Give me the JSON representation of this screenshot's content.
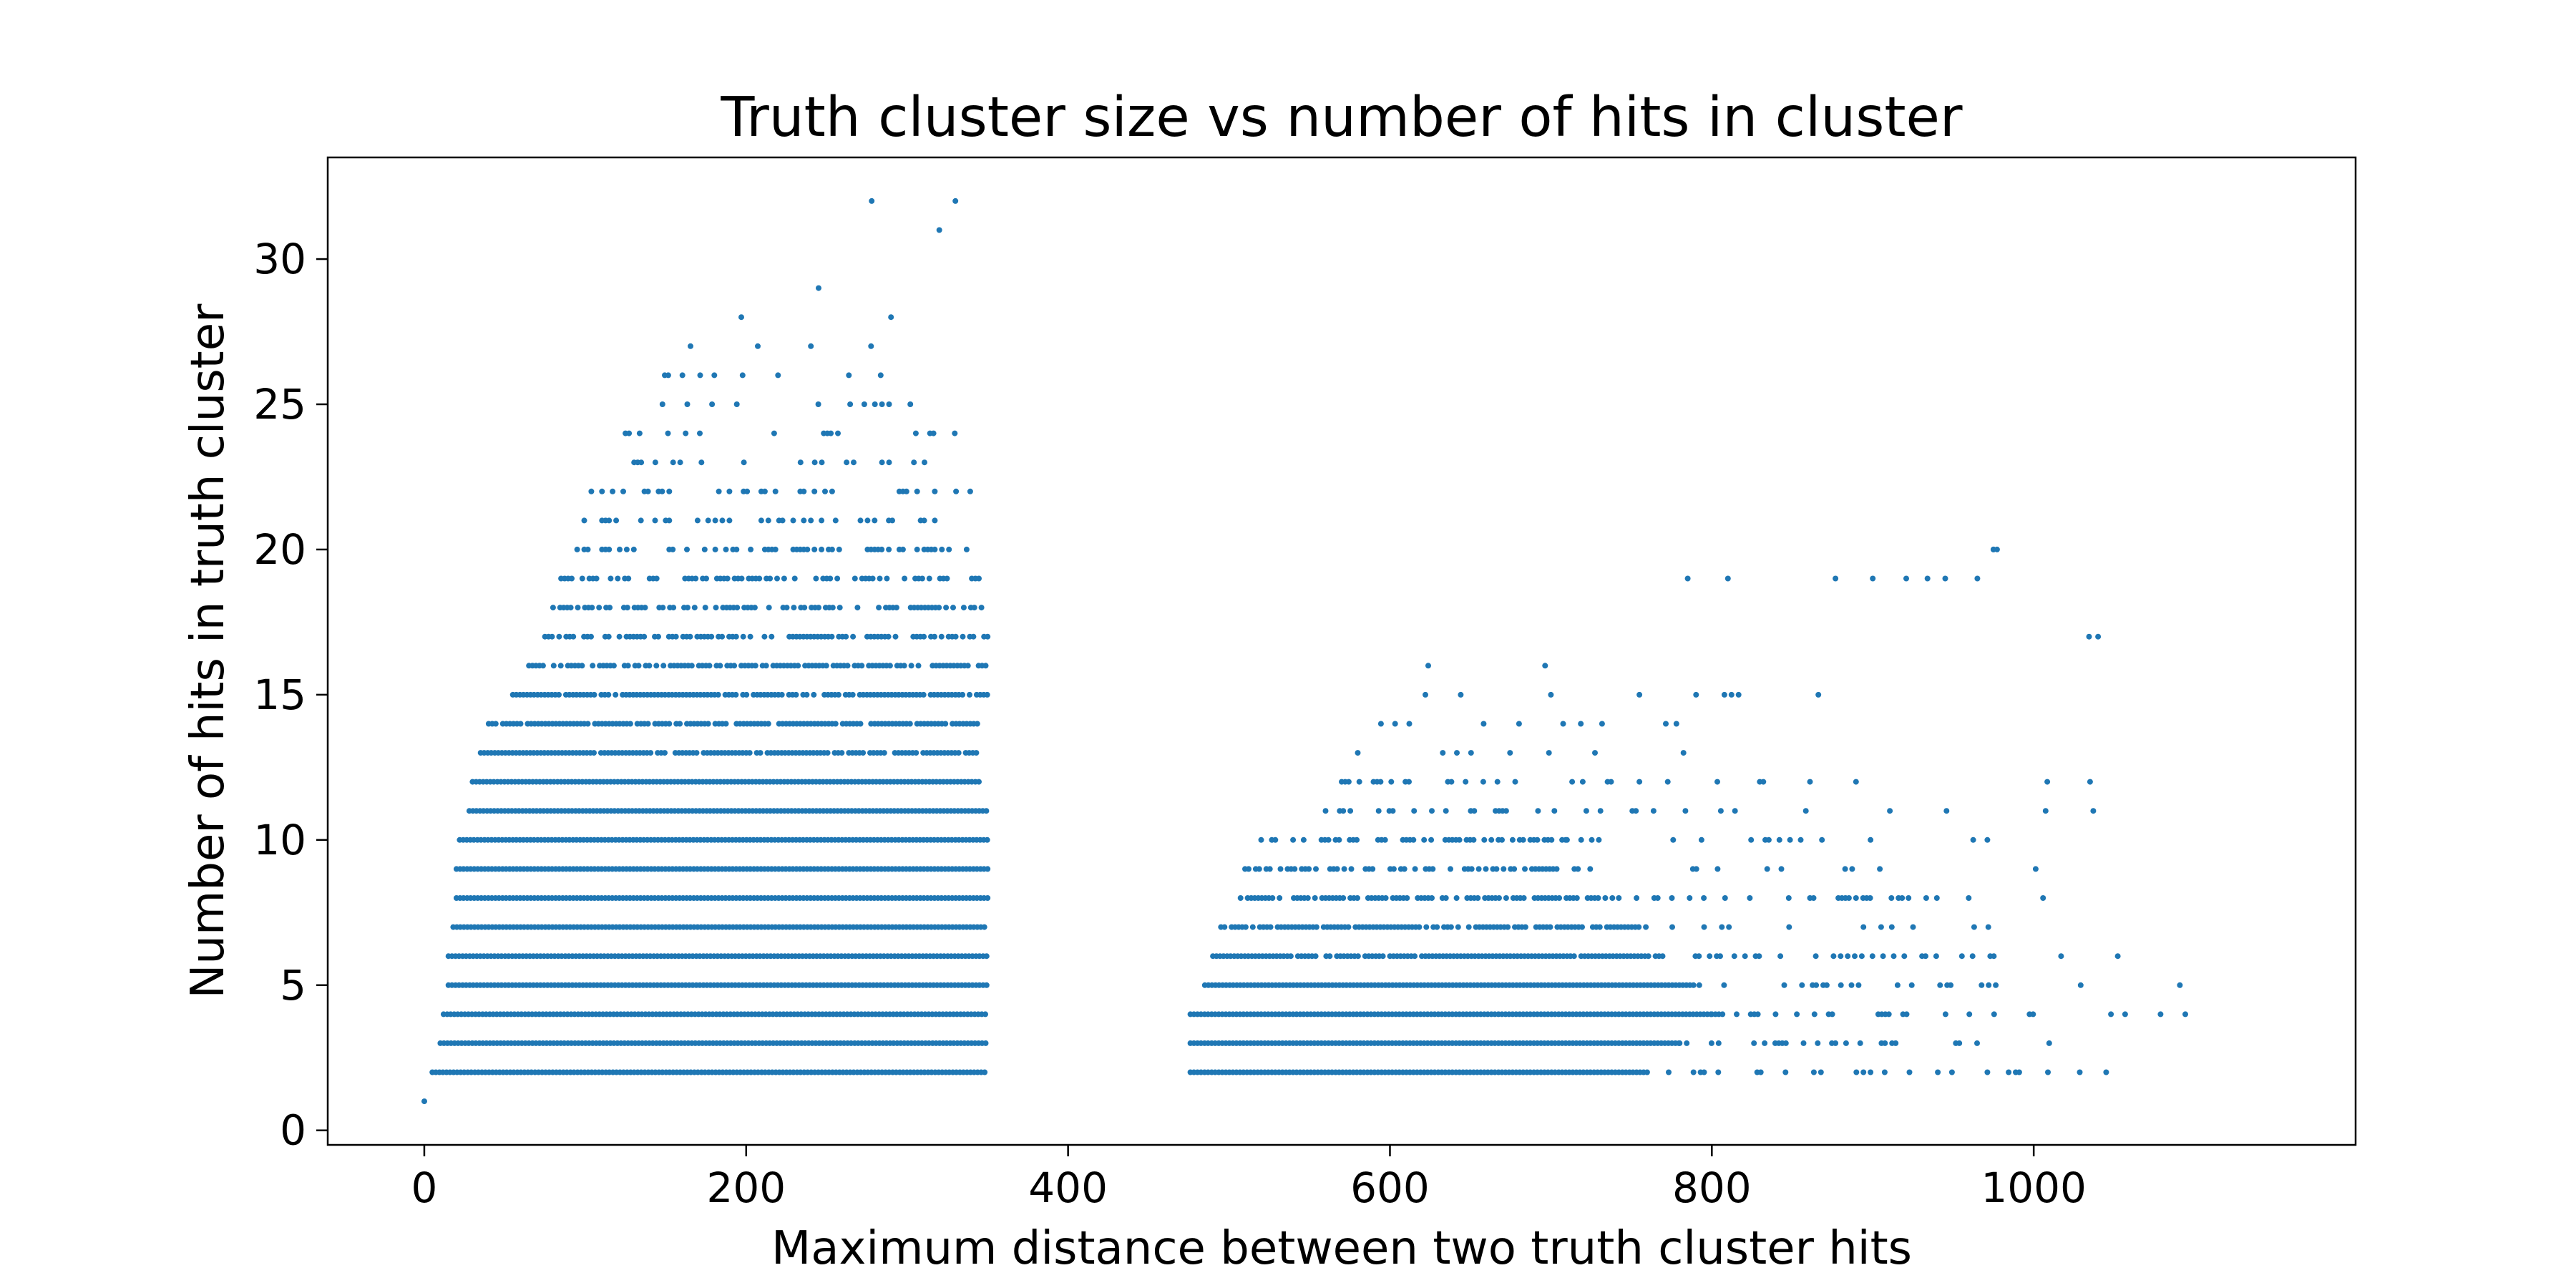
{
  "chart_data": {
    "type": "scatter",
    "title": "Truth cluster size vs number of hits in cluster",
    "xlabel": "Maximum distance between two truth cluster hits",
    "ylabel": "Number of hits in truth cluster",
    "xlim": [
      -60,
      1200
    ],
    "ylim": [
      -0.5,
      33.5
    ],
    "xticks": [
      0,
      200,
      400,
      600,
      800,
      1000
    ],
    "yticks": [
      0,
      5,
      10,
      15,
      20,
      25,
      30
    ],
    "grid": false,
    "marker_color": "#1f77b4",
    "series": [
      {
        "name": "",
        "bands": [
          {
            "y": 2,
            "segments": [
              [
                5,
                350,
                1.0
              ],
              [
                476,
                760,
                1.0
              ],
              [
                760,
                1000,
                0.25
              ],
              [
                1000,
                1050,
                0.08
              ]
            ]
          },
          {
            "y": 3,
            "segments": [
              [
                10,
                350,
                1.0
              ],
              [
                476,
                780,
                1.0
              ],
              [
                780,
                970,
                0.3
              ],
              [
                970,
                1060,
                0.08
              ]
            ]
          },
          {
            "y": 4,
            "segments": [
              [
                12,
                350,
                1.0
              ],
              [
                476,
                800,
                1.0
              ],
              [
                800,
                960,
                0.3
              ],
              [
                960,
                1140,
                0.06
              ]
            ]
          },
          {
            "y": 5,
            "segments": [
              [
                15,
                350,
                1.0
              ],
              [
                485,
                790,
                1.0
              ],
              [
                790,
                950,
                0.25
              ],
              [
                950,
                1110,
                0.05
              ]
            ]
          },
          {
            "y": 6,
            "segments": [
              [
                15,
                350,
                1.0
              ],
              [
                490,
                770,
                0.95
              ],
              [
                770,
                940,
                0.25
              ],
              [
                940,
                1080,
                0.05
              ]
            ]
          },
          {
            "y": 7,
            "segments": [
              [
                18,
                350,
                1.0
              ],
              [
                495,
                760,
                0.85
              ],
              [
                760,
                930,
                0.2
              ],
              [
                930,
                1000,
                0.05
              ]
            ]
          },
          {
            "y": 8,
            "segments": [
              [
                20,
                350,
                1.0
              ],
              [
                505,
                740,
                0.75
              ],
              [
                740,
                920,
                0.2
              ],
              [
                920,
                1120,
                0.04
              ]
            ]
          },
          {
            "y": 9,
            "segments": [
              [
                20,
                350,
                1.0
              ],
              [
                510,
                720,
                0.65
              ],
              [
                720,
                900,
                0.15
              ],
              [
                900,
                1020,
                0.04
              ]
            ]
          },
          {
            "y": 10,
            "segments": [
              [
                22,
                350,
                1.0
              ],
              [
                520,
                710,
                0.5
              ],
              [
                710,
                870,
                0.15
              ],
              [
                870,
                980,
                0.04
              ]
            ]
          },
          {
            "y": 11,
            "segments": [
              [
                28,
                350,
                1.0
              ],
              [
                560,
                700,
                0.35
              ],
              [
                700,
                860,
                0.12
              ],
              [
                860,
                1040,
                0.03
              ]
            ]
          },
          {
            "y": 12,
            "segments": [
              [
                30,
                345,
                1.0
              ],
              [
                570,
                700,
                0.25
              ],
              [
                700,
                850,
                0.1
              ],
              [
                850,
                1045,
                0.03
              ]
            ]
          },
          {
            "y": 13,
            "segments": [
              [
                35,
                345,
                0.95
              ],
              [
                580,
                690,
                0.15
              ],
              [
                690,
                830,
                0.08
              ],
              [
                830,
                900,
                0.03
              ]
            ]
          },
          {
            "y": 14,
            "segments": [
              [
                40,
                345,
                0.9
              ],
              [
                590,
                690,
                0.1
              ],
              [
                690,
                840,
                0.06
              ],
              [
                840,
                945,
                0.02
              ]
            ]
          },
          {
            "y": 15,
            "segments": [
              [
                55,
                350,
                0.85
              ],
              [
                600,
                700,
                0.08
              ],
              [
                700,
                820,
                0.05
              ],
              [
                820,
                950,
                0.02
              ]
            ]
          },
          {
            "y": 16,
            "segments": [
              [
                65,
                350,
                0.75
              ],
              [
                560,
                700,
                0.04
              ],
              [
                700,
                900,
                0.03
              ]
            ]
          },
          {
            "y": 17,
            "segments": [
              [
                75,
                350,
                0.65
              ],
              [
                650,
                700,
                0.06
              ],
              [
                700,
                1045,
                0.02
              ]
            ]
          },
          {
            "y": 18,
            "segments": [
              [
                80,
                350,
                0.55
              ],
              [
                680,
                690,
                0.1
              ]
            ]
          },
          {
            "y": 19,
            "segments": [
              [
                85,
                345,
                0.45
              ],
              [
                780,
                960,
                0.02
              ]
            ]
          },
          {
            "y": 20,
            "segments": [
              [
                95,
                345,
                0.35
              ],
              [
                975,
                980,
                0.2
              ]
            ]
          },
          {
            "y": 21,
            "segments": [
              [
                95,
                330,
                0.28
              ]
            ]
          },
          {
            "y": 22,
            "segments": [
              [
                95,
                340,
                0.22
              ]
            ]
          },
          {
            "y": 23,
            "segments": [
              [
                115,
                330,
                0.18
              ]
            ]
          },
          {
            "y": 24,
            "segments": [
              [
                125,
                330,
                0.15
              ]
            ]
          },
          {
            "y": 25,
            "segments": [
              [
                115,
                320,
                0.1
              ]
            ]
          },
          {
            "y": 26,
            "segments": [
              [
                145,
                330,
                0.06
              ]
            ]
          },
          {
            "y": 27,
            "segments": [
              [
                150,
                310,
                0.05
              ]
            ]
          }
        ],
        "points": [
          {
            "x": 0,
            "y": 1
          },
          {
            "x": 197,
            "y": 28
          },
          {
            "x": 245,
            "y": 29
          },
          {
            "x": 290,
            "y": 28
          },
          {
            "x": 278,
            "y": 32
          },
          {
            "x": 320,
            "y": 31
          },
          {
            "x": 330,
            "y": 32
          },
          {
            "x": 785,
            "y": 19
          },
          {
            "x": 810,
            "y": 19
          },
          {
            "x": 900,
            "y": 19
          },
          {
            "x": 945,
            "y": 19
          },
          {
            "x": 965,
            "y": 19
          },
          {
            "x": 975,
            "y": 20
          },
          {
            "x": 1040,
            "y": 17
          },
          {
            "x": 1035,
            "y": 12
          },
          {
            "x": 1037,
            "y": 11
          },
          {
            "x": 1045,
            "y": 2
          }
        ]
      }
    ]
  }
}
